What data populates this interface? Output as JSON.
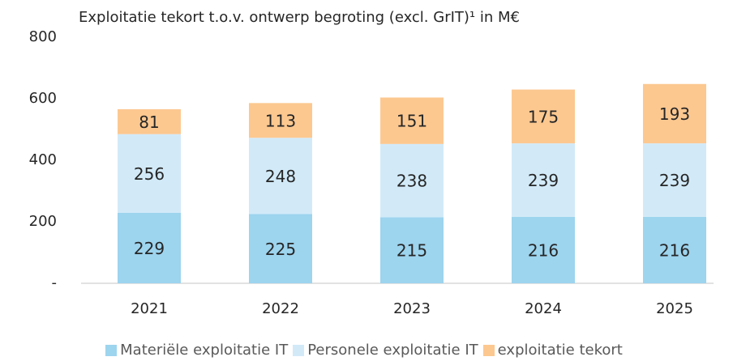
{
  "chart_data": {
    "type": "stacked_bar",
    "title": "Exploitatie tekort t.o.v. ontwerp begroting (excl. GrIT)¹ in M€",
    "categories": [
      "2021",
      "2022",
      "2023",
      "2024",
      "2025"
    ],
    "series": [
      {
        "name": "Materiële exploitatie IT",
        "color": "#9dd4ee",
        "values": [
          229,
          225,
          215,
          216,
          216
        ]
      },
      {
        "name": "Personele exploitatie IT",
        "color": "#d2eaf8",
        "values": [
          256,
          248,
          238,
          239,
          239
        ]
      },
      {
        "name": "exploitatie tekort",
        "color": "#fcc890",
        "values": [
          81,
          113,
          151,
          175,
          193
        ]
      }
    ],
    "ylim": [
      0,
      800
    ],
    "yticks": [
      {
        "value": 0,
        "label": "-"
      },
      200,
      400,
      600,
      800
    ],
    "grid": false,
    "legend": "bottom"
  }
}
